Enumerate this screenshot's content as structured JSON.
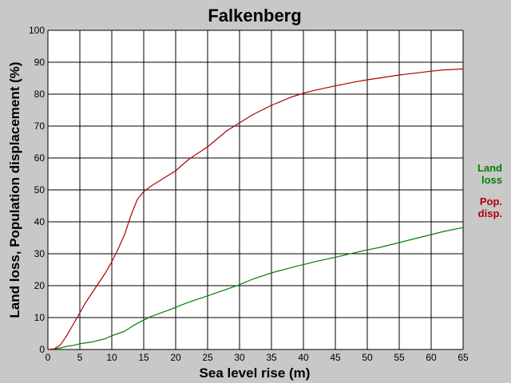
{
  "chart_data": {
    "type": "line",
    "title": "Falkenberg",
    "xlabel": "Sea level rise (m)",
    "ylabel": "Land loss, Population displacement (%)",
    "xlim": [
      0,
      65
    ],
    "ylim": [
      0,
      100
    ],
    "x_ticks": [
      "0",
      "5",
      "10",
      "15",
      "20",
      "25",
      "30",
      "35",
      "40",
      "45",
      "50",
      "55",
      "60",
      "65"
    ],
    "y_ticks": [
      "0",
      "10",
      "20",
      "30",
      "40",
      "50",
      "60",
      "70",
      "80",
      "90",
      "100"
    ],
    "grid": true,
    "legend_placement": "right",
    "series": [
      {
        "name_lines": [
          "Land",
          "loss"
        ],
        "color": "#008000",
        "points": [
          [
            0,
            0
          ],
          [
            1,
            0.2
          ],
          [
            2,
            0.5
          ],
          [
            3,
            1
          ],
          [
            4,
            1.3
          ],
          [
            5,
            1.8
          ],
          [
            6,
            2.1
          ],
          [
            7,
            2.4
          ],
          [
            8,
            2.9
          ],
          [
            9,
            3.4
          ],
          [
            10,
            4.3
          ],
          [
            11,
            5
          ],
          [
            12,
            5.7
          ],
          [
            13,
            7
          ],
          [
            14,
            8.2
          ],
          [
            15,
            9.2
          ],
          [
            16,
            10.2
          ],
          [
            17,
            11
          ],
          [
            18,
            11.7
          ],
          [
            19,
            12.4
          ],
          [
            20,
            13.2
          ],
          [
            22,
            14.8
          ],
          [
            25,
            16.8
          ],
          [
            28,
            18.9
          ],
          [
            30,
            20.3
          ],
          [
            32,
            22
          ],
          [
            35,
            24
          ],
          [
            38,
            25.6
          ],
          [
            40,
            26.6
          ],
          [
            42,
            27.6
          ],
          [
            45,
            28.9
          ],
          [
            48,
            30.3
          ],
          [
            50,
            31.2
          ],
          [
            52,
            32
          ],
          [
            55,
            33.5
          ],
          [
            58,
            35
          ],
          [
            60,
            36
          ],
          [
            62,
            37
          ],
          [
            65,
            38.2
          ]
        ]
      },
      {
        "name_lines": [
          "Pop.",
          "disp."
        ],
        "color": "#b00000",
        "points": [
          [
            0,
            0
          ],
          [
            1,
            0.2
          ],
          [
            2,
            1.5
          ],
          [
            3,
            4.5
          ],
          [
            4,
            8
          ],
          [
            5,
            11.5
          ],
          [
            6,
            15
          ],
          [
            7,
            18
          ],
          [
            8,
            21
          ],
          [
            9,
            24
          ],
          [
            10,
            27.5
          ],
          [
            11,
            31.5
          ],
          [
            12,
            36
          ],
          [
            13,
            42
          ],
          [
            14,
            47
          ],
          [
            15,
            49.5
          ],
          [
            16,
            51
          ],
          [
            18,
            53.5
          ],
          [
            20,
            56
          ],
          [
            22,
            59.5
          ],
          [
            25,
            63.5
          ],
          [
            28,
            68.5
          ],
          [
            30,
            71
          ],
          [
            32,
            73.5
          ],
          [
            35,
            76.5
          ],
          [
            38,
            79
          ],
          [
            40,
            80.3
          ],
          [
            42,
            81.3
          ],
          [
            45,
            82.6
          ],
          [
            48,
            83.8
          ],
          [
            50,
            84.5
          ],
          [
            52,
            85.1
          ],
          [
            55,
            86
          ],
          [
            58,
            86.7
          ],
          [
            60,
            87.2
          ],
          [
            62,
            87.6
          ],
          [
            65,
            87.9
          ]
        ]
      }
    ]
  }
}
